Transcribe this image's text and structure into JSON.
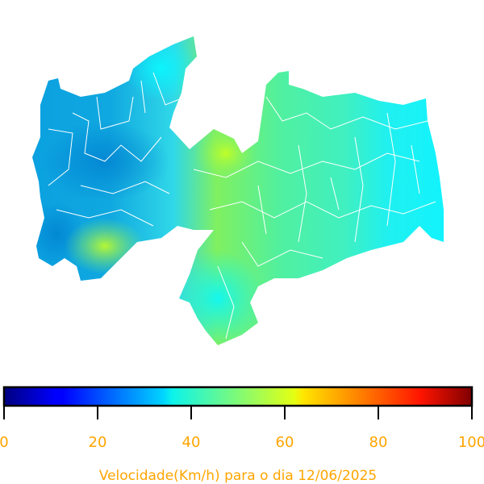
{
  "colorbar": {
    "label": "Velocidade(Km/h) para o dia 12/06/2025",
    "lim": [
      0,
      100
    ],
    "ticks": [
      0,
      20,
      40,
      60,
      80,
      100
    ]
  }
}
